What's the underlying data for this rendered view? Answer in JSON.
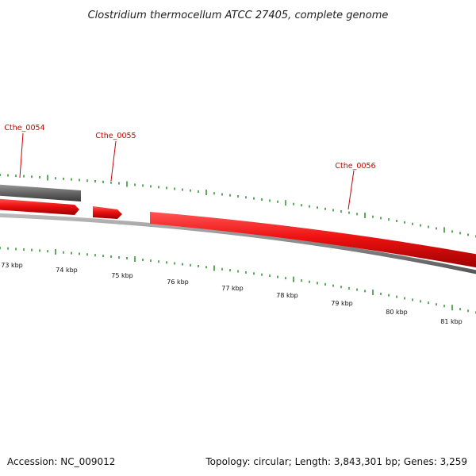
{
  "title": "Clostridium thermocellum ATCC 27405, complete genome",
  "footer": {
    "accession": "Accession: NC_009012",
    "summary": "Topology: circular; Length: 3,843,301 bp; Genes: 3,259"
  },
  "colors": {
    "gene_forward": "#ee1111",
    "gene_other": "#666666",
    "backbone": "#888888",
    "tick": "#2b8a2b",
    "label": "#cc0000"
  },
  "genes": [
    {
      "name": "Cthe_0054",
      "strand": "plus",
      "color": "gene_other"
    },
    {
      "name": "Cthe_0055",
      "strand": "minus",
      "color": "gene_forward"
    },
    {
      "name": "Cthe_0056",
      "strand": "minus",
      "color": "gene_forward"
    }
  ],
  "scale": {
    "unit": "kbp",
    "labels": [
      "73 kbp",
      "74 kbp",
      "75 kbp",
      "76 kbp",
      "77 kbp",
      "78 kbp",
      "79 kbp",
      "80 kbp",
      "81 kbp"
    ]
  }
}
